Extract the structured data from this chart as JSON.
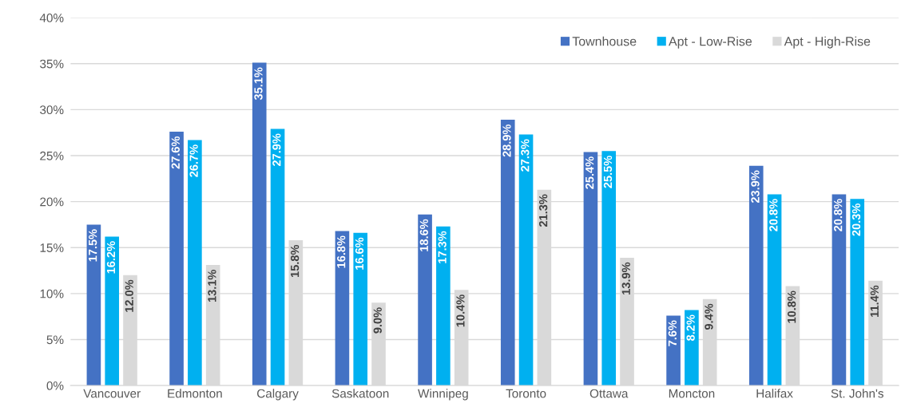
{
  "chart_data": {
    "type": "bar",
    "categories": [
      "Vancouver",
      "Edmonton",
      "Calgary",
      "Saskatoon",
      "Winnipeg",
      "Toronto",
      "Ottawa",
      "Moncton",
      "Halifax",
      "St. John's"
    ],
    "series": [
      {
        "name": "Townhouse",
        "color": "#4472c4",
        "values": [
          17.5,
          27.6,
          35.1,
          16.8,
          18.6,
          28.9,
          25.4,
          7.6,
          23.9,
          20.8
        ],
        "value_labels": [
          "17.5%",
          "27.6%",
          "35.1%",
          "16.8%",
          "18.6%",
          "28.9%",
          "25.4%",
          "7.6%",
          "23.9%",
          "20.8%"
        ]
      },
      {
        "name": "Apt - Low-Rise",
        "color": "#00b0f0",
        "values": [
          16.2,
          26.7,
          27.9,
          16.6,
          17.3,
          27.3,
          25.5,
          8.2,
          20.8,
          20.3
        ],
        "value_labels": [
          "16.2%",
          "26.7%",
          "27.9%",
          "16.6%",
          "17.3%",
          "27.3%",
          "25.5%",
          "8.2%",
          "20.8%",
          "20.3%"
        ]
      },
      {
        "name": "Apt - High-Rise",
        "color": "#d9d9d9",
        "values": [
          12.0,
          13.1,
          15.8,
          9.0,
          10.4,
          21.3,
          13.9,
          9.4,
          10.8,
          11.4
        ],
        "value_labels": [
          "12.0%",
          "13.1%",
          "15.8%",
          "9.0%",
          "10.4%",
          "21.3%",
          "13.9%",
          "9.4%",
          "10.8%",
          "11.4%"
        ]
      }
    ],
    "ylim": [
      0,
      40
    ],
    "yticks": [
      {
        "value": 0,
        "label": "0%"
      },
      {
        "value": 5,
        "label": "5%"
      },
      {
        "value": 10,
        "label": "10%"
      },
      {
        "value": 15,
        "label": "15%"
      },
      {
        "value": 20,
        "label": "20%"
      },
      {
        "value": 25,
        "label": "25%"
      },
      {
        "value": 30,
        "label": "30%"
      },
      {
        "value": 35,
        "label": "35%"
      },
      {
        "value": 40,
        "label": "40%"
      }
    ],
    "grid": "y",
    "legend": "top right"
  }
}
